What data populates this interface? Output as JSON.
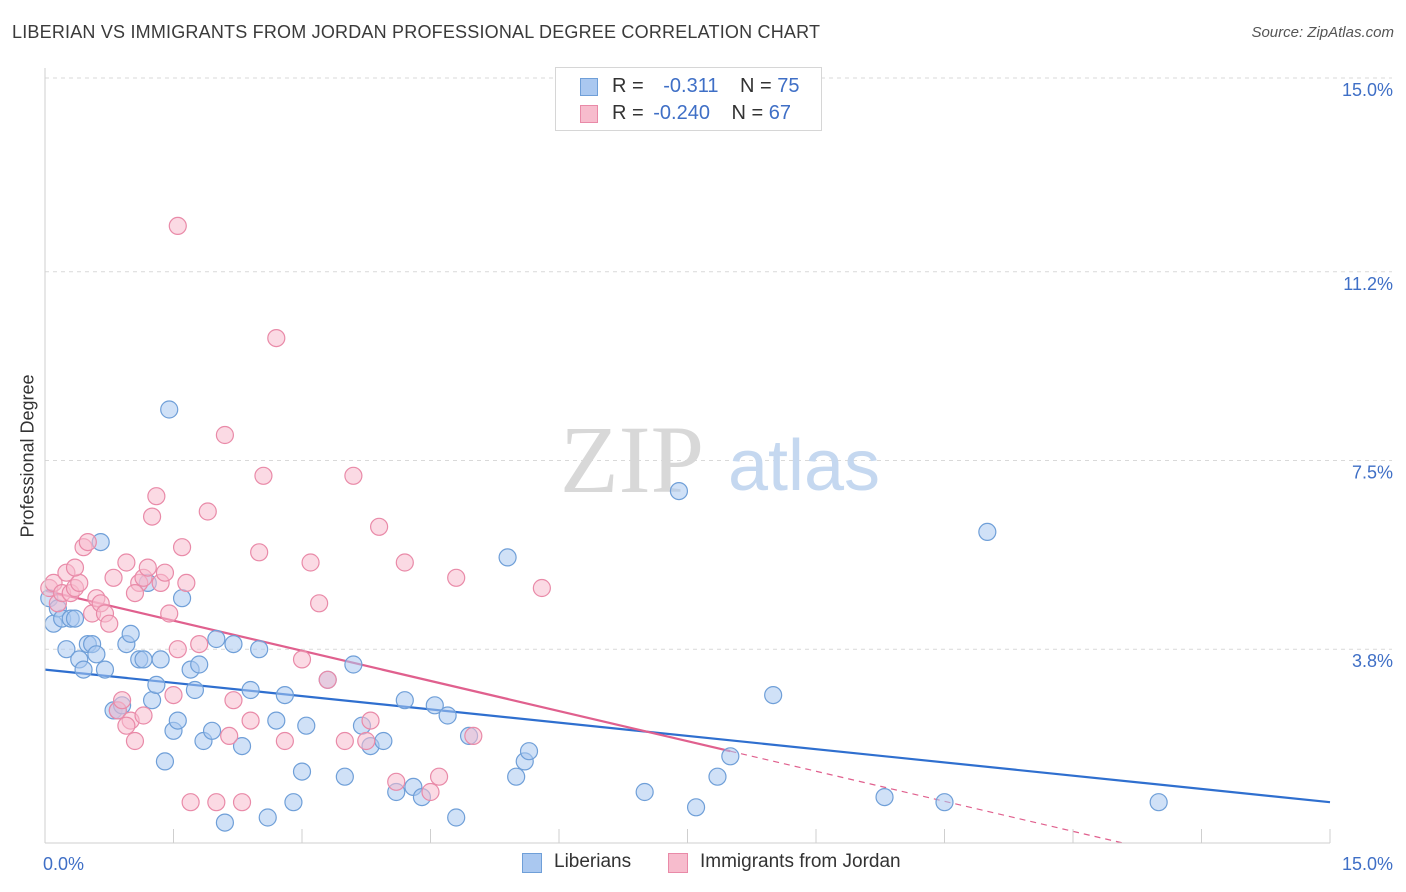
{
  "title": "LIBERIAN VS IMMIGRANTS FROM JORDAN PROFESSIONAL DEGREE CORRELATION CHART",
  "source": "Source: ZipAtlas.com",
  "watermark": {
    "zip": "ZIP",
    "atlas": "atlas"
  },
  "colors": {
    "blue_fill": "#aac8f0",
    "blue_stroke": "#6f9fd8",
    "blue_line": "#2f6fcf",
    "pink_fill": "#f7bccd",
    "pink_stroke": "#e98aa8",
    "pink_line": "#e0608e",
    "grid": "#d9d9d9",
    "axis_text": "#3f6fc6"
  },
  "legend": {
    "rows": [
      {
        "r_label": "R =",
        "r_value": "-0.311",
        "n_label": "N =",
        "n_value": "75"
      },
      {
        "r_label": "R =",
        "r_value": "-0.240",
        "n_label": "N =",
        "n_value": "67"
      }
    ]
  },
  "bottom_legend": [
    "Liberians",
    "Immigrants from Jordan"
  ],
  "chart_data": {
    "type": "scatter",
    "title": "LIBERIAN VS IMMIGRANTS FROM JORDAN PROFESSIONAL DEGREE CORRELATION CHART",
    "xlabel": "",
    "ylabel": "Professional Degree",
    "xlim": [
      0,
      15
    ],
    "ylim": [
      0,
      15
    ],
    "x_tick_labels": {
      "left": "0.0%",
      "right": "15.0%"
    },
    "y_ticks": [
      {
        "value": 3.8,
        "label": "3.8%"
      },
      {
        "value": 7.5,
        "label": "7.5%"
      },
      {
        "value": 11.2,
        "label": "11.2%"
      },
      {
        "value": 15.0,
        "label": "15.0%"
      }
    ],
    "series": [
      {
        "name": "Liberians",
        "color": "blue",
        "trend": {
          "x0": 0.0,
          "y0": 3.4,
          "x1": 15.0,
          "y1": 0.8
        },
        "points": [
          [
            0.05,
            4.8
          ],
          [
            0.1,
            4.3
          ],
          [
            0.15,
            4.6
          ],
          [
            0.2,
            4.4
          ],
          [
            0.25,
            3.8
          ],
          [
            0.3,
            4.4
          ],
          [
            0.35,
            4.4
          ],
          [
            0.4,
            3.6
          ],
          [
            0.45,
            3.4
          ],
          [
            0.5,
            3.9
          ],
          [
            0.55,
            3.9
          ],
          [
            0.6,
            3.7
          ],
          [
            0.65,
            5.9
          ],
          [
            0.7,
            3.4
          ],
          [
            0.8,
            2.6
          ],
          [
            0.85,
            2.6
          ],
          [
            0.9,
            2.7
          ],
          [
            0.95,
            3.9
          ],
          [
            1.0,
            4.1
          ],
          [
            1.1,
            3.6
          ],
          [
            1.15,
            3.6
          ],
          [
            1.2,
            5.1
          ],
          [
            1.25,
            2.8
          ],
          [
            1.3,
            3.1
          ],
          [
            1.35,
            3.6
          ],
          [
            1.4,
            1.6
          ],
          [
            1.45,
            8.5
          ],
          [
            1.5,
            2.2
          ],
          [
            1.55,
            2.4
          ],
          [
            1.6,
            4.8
          ],
          [
            1.7,
            3.4
          ],
          [
            1.75,
            3.0
          ],
          [
            1.8,
            3.5
          ],
          [
            1.85,
            2.0
          ],
          [
            1.95,
            2.2
          ],
          [
            2.0,
            4.0
          ],
          [
            2.1,
            0.4
          ],
          [
            2.2,
            3.9
          ],
          [
            2.3,
            1.9
          ],
          [
            2.4,
            3.0
          ],
          [
            2.5,
            3.8
          ],
          [
            2.6,
            0.5
          ],
          [
            2.7,
            2.4
          ],
          [
            2.8,
            2.9
          ],
          [
            2.9,
            0.8
          ],
          [
            3.0,
            1.4
          ],
          [
            3.05,
            2.3
          ],
          [
            3.3,
            3.2
          ],
          [
            3.5,
            1.3
          ],
          [
            3.6,
            3.5
          ],
          [
            3.7,
            2.3
          ],
          [
            3.8,
            1.9
          ],
          [
            3.95,
            2.0
          ],
          [
            4.1,
            1.0
          ],
          [
            4.2,
            2.8
          ],
          [
            4.3,
            1.1
          ],
          [
            4.4,
            0.9
          ],
          [
            4.55,
            2.7
          ],
          [
            4.7,
            2.5
          ],
          [
            4.8,
            0.5
          ],
          [
            4.95,
            2.1
          ],
          [
            5.4,
            5.6
          ],
          [
            5.5,
            1.3
          ],
          [
            5.6,
            1.6
          ],
          [
            5.65,
            1.8
          ],
          [
            7.0,
            1.0
          ],
          [
            7.4,
            6.9
          ],
          [
            7.6,
            0.7
          ],
          [
            7.85,
            1.3
          ],
          [
            8.0,
            1.7
          ],
          [
            8.5,
            2.9
          ],
          [
            9.8,
            0.9
          ],
          [
            10.5,
            0.8
          ],
          [
            11.0,
            6.1
          ],
          [
            13.0,
            0.8
          ]
        ]
      },
      {
        "name": "Immigrants from Jordan",
        "color": "pink",
        "trend": {
          "x0": 0.0,
          "y0": 4.95,
          "x1": 8.0,
          "y1": 1.8
        },
        "trend_dashed": {
          "x0": 8.0,
          "y0": 1.8,
          "x1": 15.0,
          "y1": -0.95
        },
        "points": [
          [
            0.05,
            5.0
          ],
          [
            0.1,
            5.1
          ],
          [
            0.15,
            4.7
          ],
          [
            0.2,
            4.9
          ],
          [
            0.25,
            5.3
          ],
          [
            0.3,
            4.9
          ],
          [
            0.35,
            5.0
          ],
          [
            0.4,
            5.1
          ],
          [
            0.45,
            5.8
          ],
          [
            0.5,
            5.9
          ],
          [
            0.55,
            4.5
          ],
          [
            0.6,
            4.8
          ],
          [
            0.65,
            4.7
          ],
          [
            0.7,
            4.5
          ],
          [
            0.75,
            4.3
          ],
          [
            0.8,
            5.2
          ],
          [
            0.85,
            2.6
          ],
          [
            0.9,
            2.8
          ],
          [
            0.95,
            5.5
          ],
          [
            1.0,
            2.4
          ],
          [
            1.05,
            2.0
          ],
          [
            1.1,
            5.1
          ],
          [
            1.15,
            5.2
          ],
          [
            1.2,
            5.4
          ],
          [
            1.25,
            6.4
          ],
          [
            1.3,
            6.8
          ],
          [
            1.35,
            5.1
          ],
          [
            1.4,
            5.3
          ],
          [
            1.45,
            4.5
          ],
          [
            1.5,
            2.9
          ],
          [
            1.55,
            3.8
          ],
          [
            1.6,
            5.8
          ],
          [
            1.65,
            5.1
          ],
          [
            1.7,
            0.8
          ],
          [
            1.8,
            3.9
          ],
          [
            1.9,
            6.5
          ],
          [
            2.0,
            0.8
          ],
          [
            2.1,
            8.0
          ],
          [
            2.2,
            2.8
          ],
          [
            2.3,
            0.8
          ],
          [
            2.4,
            2.4
          ],
          [
            2.5,
            5.7
          ],
          [
            2.55,
            7.2
          ],
          [
            2.7,
            9.9
          ],
          [
            2.8,
            2.0
          ],
          [
            3.0,
            3.6
          ],
          [
            3.1,
            5.5
          ],
          [
            3.2,
            4.7
          ],
          [
            3.3,
            3.2
          ],
          [
            3.5,
            2.0
          ],
          [
            3.6,
            7.2
          ],
          [
            3.75,
            2.0
          ],
          [
            3.8,
            2.4
          ],
          [
            3.9,
            6.2
          ],
          [
            4.1,
            1.2
          ],
          [
            4.2,
            5.5
          ],
          [
            4.5,
            1.0
          ],
          [
            4.6,
            1.3
          ],
          [
            4.8,
            5.2
          ],
          [
            5.0,
            2.1
          ],
          [
            5.8,
            5.0
          ],
          [
            1.55,
            12.1
          ],
          [
            0.95,
            2.3
          ],
          [
            1.15,
            2.5
          ],
          [
            2.15,
            2.1
          ],
          [
            0.35,
            5.4
          ],
          [
            1.05,
            4.9
          ]
        ]
      }
    ]
  }
}
